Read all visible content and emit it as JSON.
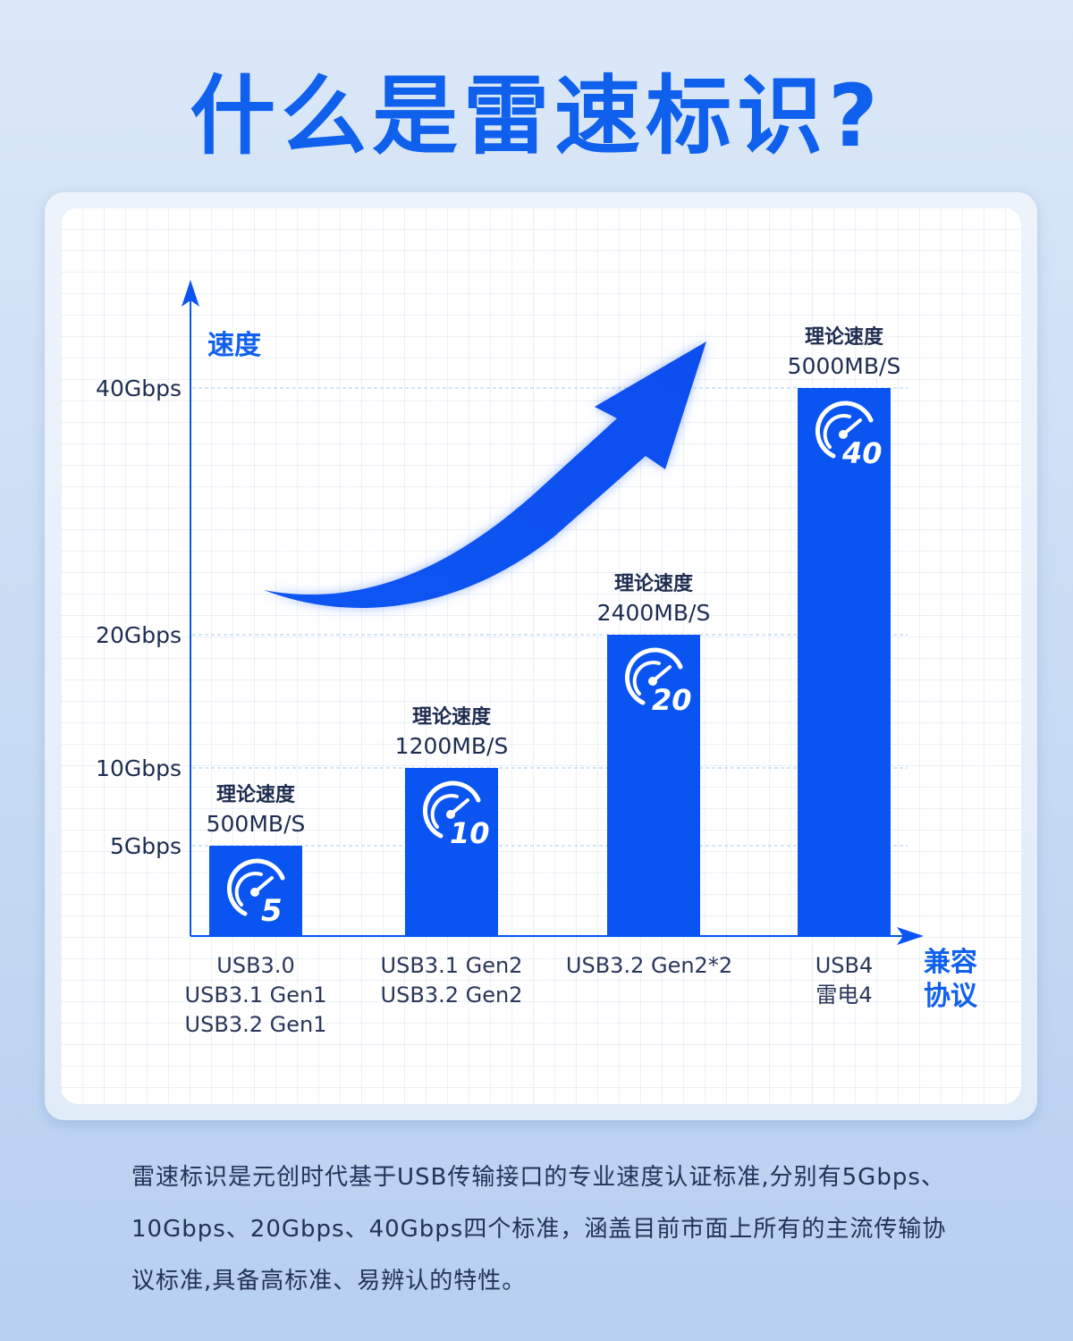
{
  "title": "什么是雷速标识?",
  "chart_data": {
    "type": "bar",
    "ylabel": "速度",
    "xlabel": "兼容协议",
    "yticks": [
      {
        "value": 5,
        "label": "5Gbps"
      },
      {
        "value": 10,
        "label": "10Gbps"
      },
      {
        "value": 20,
        "label": "20Gbps"
      },
      {
        "value": 40,
        "label": "40Gbps"
      }
    ],
    "y_scale": "non-linear (ticks at 5, 10, 20, 40)",
    "grid": "dashed lines at ticks",
    "bar_color": "#0a55f2",
    "categories": [
      [
        "USB3.0",
        "USB3.1 Gen1",
        "USB3.2 Gen1"
      ],
      [
        "USB3.1 Gen2",
        "USB3.2 Gen2"
      ],
      [
        "USB3.2 Gen2*2"
      ],
      [
        "USB4",
        "雷电4"
      ]
    ],
    "values": [
      5,
      10,
      20,
      40
    ],
    "bar_icon_numbers": [
      "5",
      "10",
      "20",
      "40"
    ],
    "data_labels": [
      {
        "caption": "理论速度",
        "value": "500MB/S"
      },
      {
        "caption": "理论速度",
        "value": "1200MB/S"
      },
      {
        "caption": "理论速度",
        "value": "2400MB/S"
      },
      {
        "caption": "理论速度",
        "value": "5000MB/S"
      }
    ],
    "annotation": "upward-trend-arrow"
  },
  "description": "雷速标识是元创时代基于USB传输接口的专业速度认证标准,分别有5Gbps、10Gbps、20Gbps、40Gbps四个标准，涵盖目前市面上所有的主流传输协议标准,具备高标准、易辨认的特性。"
}
